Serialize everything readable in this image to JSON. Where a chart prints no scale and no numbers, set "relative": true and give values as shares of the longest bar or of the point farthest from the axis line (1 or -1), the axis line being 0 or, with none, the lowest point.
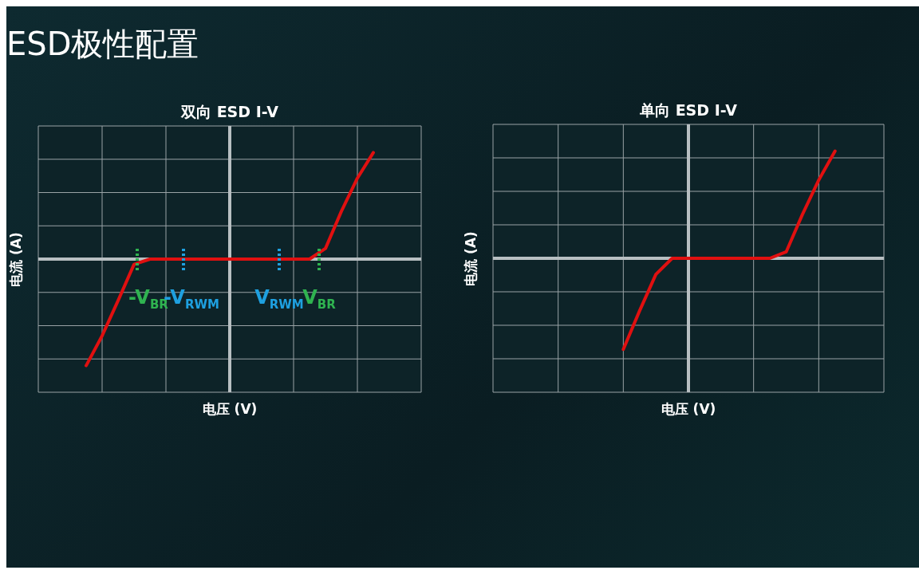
{
  "chart_data": [
    {
      "type": "line",
      "title": "双向 ESD I-V",
      "xlabel": "电压 (V)",
      "ylabel": "电流 (A)",
      "relative": true,
      "grid": true,
      "marker": "none",
      "line_style": "solid",
      "categories": [
        null,
        null,
        null,
        null,
        null,
        null,
        null,
        null,
        null,
        null,
        null,
        null,
        null,
        null,
        null,
        null,
        null,
        null,
        null,
        null,
        null,
        null,
        null,
        null,
        null
      ],
      "series": [
        {
          "color": "#e01010",
          "values": [
            null,
            null,
            null,
            -1,
            -0.72,
            -0.39,
            -0.05,
            0,
            0,
            0,
            0,
            0,
            0,
            0,
            0,
            0,
            0,
            0,
            0.1,
            0.45,
            0.76,
            1,
            null,
            null,
            null
          ]
        }
      ],
      "annotations": [
        "ESD极性配置",
        "-V$_{BR}$",
        "-V$_{RWM}$",
        "V$_{RWM}$",
        "V$_{BR}$"
      ]
    },
    {
      "type": "line",
      "title": "单向 ESD I-V",
      "xlabel": "电压 (V)",
      "ylabel": "电流 (A)",
      "relative": true,
      "grid": true,
      "marker": "none",
      "line_style": "solid",
      "categories": [
        null,
        null,
        null,
        null,
        null,
        null,
        null,
        null,
        null,
        null,
        null,
        null,
        null,
        null,
        null,
        null,
        null,
        null,
        null,
        null,
        null,
        null,
        null,
        null,
        null
      ],
      "series": [
        {
          "color": "#e01010",
          "values": [
            null,
            null,
            null,
            null,
            null,
            null,
            null,
            null,
            -0.85,
            -0.49,
            -0.15,
            0,
            0,
            0,
            0,
            0,
            0,
            0,
            0.06,
            0.41,
            0.73,
            1,
            null,
            null,
            null
          ]
        }
      ]
    }
  ]
}
